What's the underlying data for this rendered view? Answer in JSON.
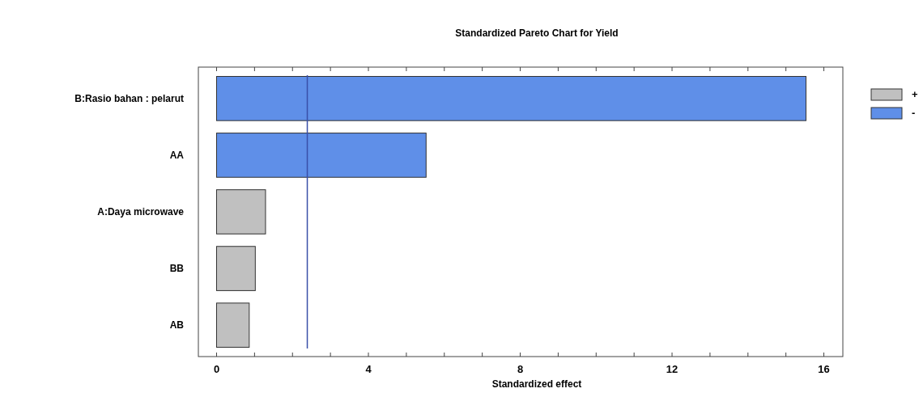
{
  "chart_data": {
    "type": "bar",
    "title": "Standardized Pareto Chart for Yield",
    "xlabel": "Standardized effect",
    "orientation": "horizontal",
    "categories": [
      "B:Rasio bahan : pelarut",
      "AA",
      "A:Daya microwave",
      "BB",
      "AB"
    ],
    "series": [
      {
        "name": "+",
        "color": "#c0c0c0",
        "values": [
          null,
          null,
          1.29,
          1.02,
          0.86
        ]
      },
      {
        "name": "-",
        "color": "#5f8fe8",
        "values": [
          15.53,
          5.52,
          null,
          null,
          null
        ]
      }
    ],
    "xlim": [
      -0.48,
      16.5
    ],
    "xticks": [
      0,
      {
        "value": 1,
        "label": null
      },
      {
        "value": 2,
        "label": null
      },
      {
        "value": 3,
        "label": null
      },
      4,
      {
        "value": 5,
        "label": null
      },
      {
        "value": 6,
        "label": null
      },
      {
        "value": 7,
        "label": null
      },
      8,
      {
        "value": 9,
        "label": null
      },
      {
        "value": 10,
        "label": null
      },
      {
        "value": 11,
        "label": null
      },
      12,
      {
        "value": 13,
        "label": null
      },
      {
        "value": 14,
        "label": null
      },
      {
        "value": 15,
        "label": null
      },
      16
    ],
    "ref_lines": [
      {
        "axis": "x",
        "value": 2.39,
        "color": "#3a4fa8"
      }
    ],
    "legend": "right"
  }
}
